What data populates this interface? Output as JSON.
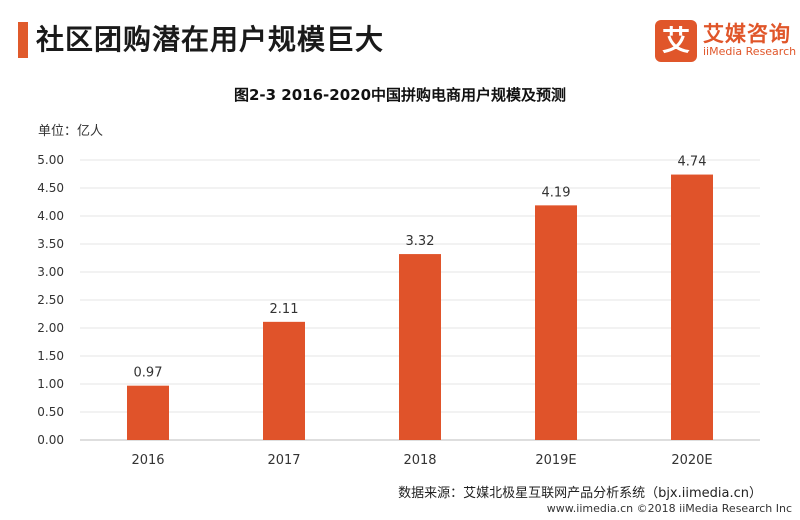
{
  "header": {
    "title": "社区团购潜在用户规模巨大"
  },
  "logo": {
    "mark": "艾",
    "name": "艾媒咨询",
    "sub": "iiMedia Research"
  },
  "colors": {
    "bar": "#e0532a",
    "accent": "#e05a2b"
  },
  "chart_data": {
    "type": "bar",
    "title": "图2-3 2016-2020中国拼购电商用户规模及预测",
    "unit_label": "单位：亿人",
    "categories": [
      "2016",
      "2017",
      "2018",
      "2019E",
      "2020E"
    ],
    "values": [
      0.97,
      2.11,
      3.32,
      4.19,
      4.74
    ],
    "value_labels": [
      "0.97",
      "2.11",
      "3.32",
      "4.19",
      "4.74"
    ],
    "yticks": [
      "0.00",
      "0.50",
      "1.00",
      "1.50",
      "2.00",
      "2.50",
      "3.00",
      "3.50",
      "4.00",
      "4.50",
      "5.00"
    ],
    "ylim": [
      0,
      5
    ],
    "grid": true
  },
  "source": "数据来源：艾媒北极星互联网产品分析系统（bjx.iimedia.cn）",
  "footer": "www.iimedia.cn  ©2018  iiMedia Research Inc"
}
